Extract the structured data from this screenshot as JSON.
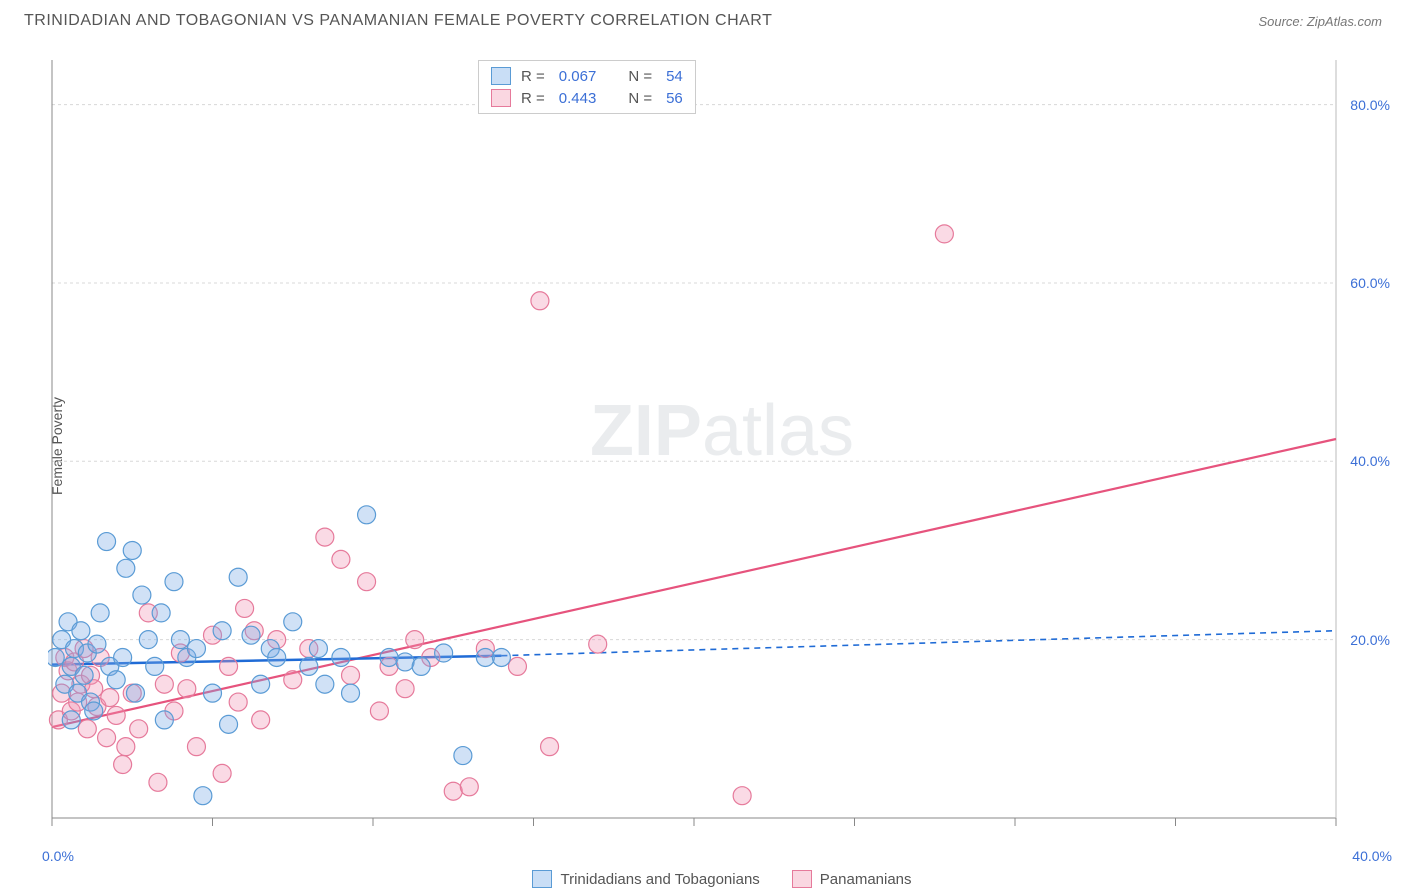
{
  "title": "TRINIDADIAN AND TOBAGONIAN VS PANAMANIAN FEMALE POVERTY CORRELATION CHART",
  "source": "Source: ZipAtlas.com",
  "watermark_zip": "ZIP",
  "watermark_atlas": "atlas",
  "y_axis_label": "Female Poverty",
  "chart": {
    "type": "scatter",
    "xlim": [
      0,
      40
    ],
    "ylim": [
      0,
      85
    ],
    "x_zero_label": "0.0%",
    "x_max_label": "40.0%",
    "x_ticks": [
      0,
      5,
      10,
      15,
      20,
      25,
      30,
      35,
      40
    ],
    "y_ticks": [
      20,
      40,
      60,
      80
    ],
    "y_tick_labels": [
      "20.0%",
      "40.0%",
      "60.0%",
      "80.0%"
    ],
    "grid_color": "#d8d8d8",
    "grid_dash": "3,3",
    "axis_color": "#888",
    "background": "#ffffff",
    "marker_radius": 9,
    "marker_stroke_width": 1.2,
    "series": {
      "blue": {
        "label": "Trinidadians and Tobagonians",
        "fill": "rgba(120,170,230,0.35)",
        "stroke": "#5a9bd5",
        "r_value": "0.067",
        "n_value": "54",
        "trend_color": "#1f6bd6",
        "trend_solid": {
          "x1": 0,
          "y1": 17.2,
          "x2": 14,
          "y2": 18.2
        },
        "trend_dash": {
          "x1": 14,
          "y1": 18.2,
          "x2": 40,
          "y2": 21.0
        },
        "points": [
          [
            0.1,
            18
          ],
          [
            0.3,
            20
          ],
          [
            0.4,
            15
          ],
          [
            0.5,
            22
          ],
          [
            0.6,
            17
          ],
          [
            0.7,
            19
          ],
          [
            0.8,
            14
          ],
          [
            0.9,
            21
          ],
          [
            1.0,
            16
          ],
          [
            1.1,
            18.5
          ],
          [
            1.2,
            13
          ],
          [
            1.3,
            12
          ],
          [
            1.4,
            19.5
          ],
          [
            1.5,
            23
          ],
          [
            1.7,
            31
          ],
          [
            1.8,
            17
          ],
          [
            2.0,
            15.5
          ],
          [
            2.2,
            18
          ],
          [
            2.3,
            28
          ],
          [
            2.5,
            30
          ],
          [
            2.6,
            14
          ],
          [
            2.8,
            25
          ],
          [
            3.0,
            20
          ],
          [
            3.2,
            17
          ],
          [
            3.4,
            23
          ],
          [
            3.5,
            11
          ],
          [
            3.8,
            26.5
          ],
          [
            4.0,
            20
          ],
          [
            4.2,
            18
          ],
          [
            4.5,
            19
          ],
          [
            4.7,
            2.5
          ],
          [
            5.0,
            14
          ],
          [
            5.3,
            21
          ],
          [
            5.5,
            10.5
          ],
          [
            5.8,
            27
          ],
          [
            6.2,
            20.5
          ],
          [
            6.5,
            15
          ],
          [
            6.8,
            19
          ],
          [
            7.0,
            18
          ],
          [
            7.5,
            22
          ],
          [
            8.0,
            17
          ],
          [
            8.3,
            19
          ],
          [
            8.5,
            15
          ],
          [
            9.0,
            18
          ],
          [
            9.3,
            14
          ],
          [
            9.8,
            34
          ],
          [
            10.5,
            18
          ],
          [
            11.0,
            17.5
          ],
          [
            11.5,
            17
          ],
          [
            12.2,
            18.5
          ],
          [
            12.8,
            7
          ],
          [
            13.5,
            18
          ],
          [
            14.0,
            18
          ],
          [
            0.6,
            11
          ]
        ]
      },
      "pink": {
        "label": "Panamanians",
        "fill": "rgba(240,150,180,0.35)",
        "stroke": "#e67a9b",
        "r_value": "0.443",
        "n_value": "56",
        "trend_color": "#e6537d",
        "trend_solid": {
          "x1": 0,
          "y1": 10.2,
          "x2": 40,
          "y2": 42.5
        },
        "points": [
          [
            0.2,
            11
          ],
          [
            0.3,
            14
          ],
          [
            0.4,
            18
          ],
          [
            0.5,
            16.5
          ],
          [
            0.6,
            12
          ],
          [
            0.7,
            17.5
          ],
          [
            0.8,
            13
          ],
          [
            0.9,
            15
          ],
          [
            1.0,
            19
          ],
          [
            1.1,
            10
          ],
          [
            1.2,
            16
          ],
          [
            1.3,
            14.5
          ],
          [
            1.4,
            12.5
          ],
          [
            1.5,
            18
          ],
          [
            1.7,
            9
          ],
          [
            1.8,
            13.5
          ],
          [
            2.0,
            11.5
          ],
          [
            2.2,
            6
          ],
          [
            2.3,
            8
          ],
          [
            2.5,
            14
          ],
          [
            2.7,
            10
          ],
          [
            3.0,
            23
          ],
          [
            3.3,
            4
          ],
          [
            3.5,
            15
          ],
          [
            3.8,
            12
          ],
          [
            4.0,
            18.5
          ],
          [
            4.2,
            14.5
          ],
          [
            4.5,
            8
          ],
          [
            5.0,
            20.5
          ],
          [
            5.3,
            5
          ],
          [
            5.5,
            17
          ],
          [
            5.8,
            13
          ],
          [
            6.0,
            23.5
          ],
          [
            6.3,
            21
          ],
          [
            6.5,
            11
          ],
          [
            7.0,
            20
          ],
          [
            7.5,
            15.5
          ],
          [
            8.0,
            19
          ],
          [
            8.5,
            31.5
          ],
          [
            9.0,
            29
          ],
          [
            9.3,
            16
          ],
          [
            9.8,
            26.5
          ],
          [
            10.2,
            12
          ],
          [
            10.5,
            17
          ],
          [
            11.0,
            14.5
          ],
          [
            11.3,
            20
          ],
          [
            11.8,
            18
          ],
          [
            12.5,
            3
          ],
          [
            13.0,
            3.5
          ],
          [
            13.5,
            19
          ],
          [
            14.5,
            17
          ],
          [
            15.2,
            58
          ],
          [
            15.5,
            8
          ],
          [
            17.0,
            19.5
          ],
          [
            21.5,
            2.5
          ],
          [
            27.8,
            65.5
          ]
        ]
      }
    }
  },
  "legend_top_r": "R =",
  "legend_top_n": "N ="
}
